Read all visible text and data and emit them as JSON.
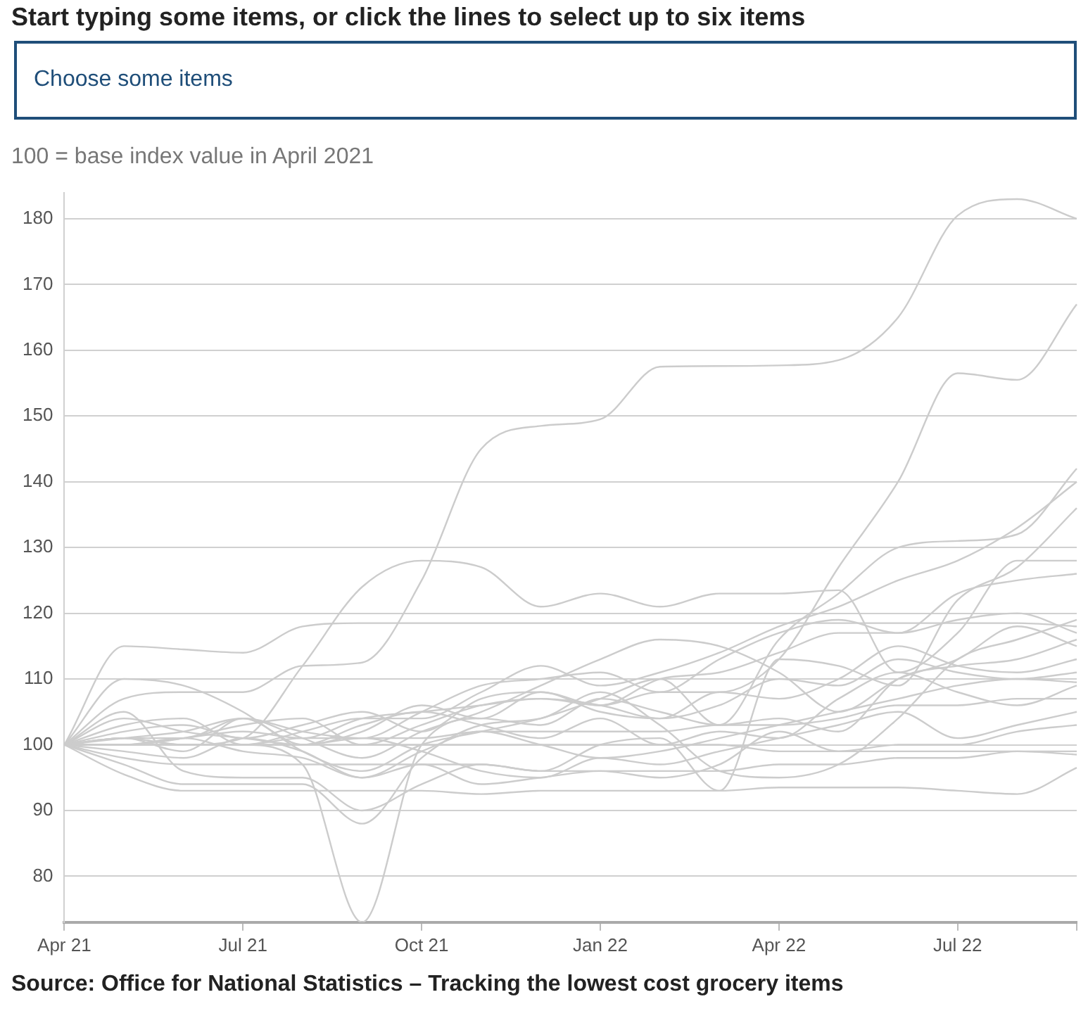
{
  "chart_data": {
    "type": "line",
    "title": "Start typing some items, or click the lines to select up to six items",
    "ylabel": "100 = base index value in April 2021",
    "annotations": [
      "Choose some items",
      "Source: Office for National Statistics – Tracking the lowest cost grocery items"
    ],
    "categories": [
      "Apr 21",
      null,
      null,
      "Jul 21",
      null,
      null,
      "Oct 21",
      null,
      null,
      "Jan 22",
      null,
      null,
      "Apr 22",
      null,
      null,
      "Jul 22",
      null,
      null
    ],
    "ylim": [
      73,
      184
    ],
    "yticks": [
      80,
      90,
      100,
      110,
      120,
      130,
      140,
      150,
      160,
      170,
      180
    ],
    "grid": "y",
    "legend": false,
    "marker": "none",
    "line_style": "solid",
    "series": [
      {
        "color": "#cccccc",
        "values": [
          100,
          107,
          108,
          108,
          112,
          112.5,
          125,
          145,
          148.5,
          149.5,
          157.5,
          157.6,
          157.7,
          158.5,
          165,
          180.5,
          183,
          180
        ]
      },
      {
        "color": "#cccccc",
        "values": [
          100,
          101,
          100,
          101,
          112,
          124,
          128,
          127,
          121,
          123,
          121,
          123,
          123,
          123.5,
          111,
          117,
          128,
          128
        ]
      },
      {
        "color": "#cccccc",
        "values": [
          100,
          115,
          114.5,
          114,
          118,
          118.5,
          118.5,
          118.5,
          118.5,
          118.5,
          118.5,
          118.5,
          118.5,
          118.5,
          118.5,
          118.5,
          118.5,
          118
        ]
      },
      {
        "color": "#cccccc",
        "values": [
          100,
          100,
          101,
          102,
          101,
          104,
          105,
          106,
          107,
          106,
          108,
          108,
          113,
          127,
          140,
          156.5,
          155.5,
          167
        ]
      },
      {
        "color": "#cccccc",
        "values": [
          100,
          100,
          100,
          100,
          97,
          73,
          100,
          104,
          103,
          107,
          105,
          103,
          104,
          102,
          110,
          112,
          113,
          116
        ]
      },
      {
        "color": "#cccccc",
        "values": [
          100,
          95.5,
          93,
          93,
          93,
          93,
          93,
          92.5,
          93,
          93,
          93,
          93,
          93.5,
          93.5,
          93.5,
          93,
          92.5,
          96.5
        ]
      },
      {
        "color": "#cccccc",
        "values": [
          100,
          97,
          94,
          94,
          94,
          88,
          98,
          103,
          104,
          108,
          103,
          96,
          95,
          97,
          104,
          113,
          116,
          119
        ]
      },
      {
        "color": "#cccccc",
        "values": [
          100,
          105,
          96,
          95,
          95,
          90,
          94,
          97,
          96,
          100,
          101,
          93,
          113,
          112,
          109,
          122,
          127,
          136
        ]
      },
      {
        "color": "#cccccc",
        "values": [
          100,
          110,
          109,
          105,
          99,
          96,
          100,
          102,
          104,
          107,
          110,
          103,
          116,
          123,
          130,
          131,
          132,
          142
        ]
      },
      {
        "color": "#cccccc",
        "values": [
          100,
          103,
          104,
          100,
          102,
          104,
          104,
          108,
          112,
          109,
          111,
          114,
          118,
          121,
          125,
          128,
          133,
          140
        ]
      },
      {
        "color": "#cccccc",
        "values": [
          100,
          101,
          99,
          104,
          101,
          98,
          102,
          105,
          109,
          113,
          116,
          115,
          111,
          105,
          110,
          113,
          118,
          115
        ]
      },
      {
        "color": "#cccccc",
        "values": [
          100,
          101,
          102,
          104,
          102,
          101,
          105,
          109,
          110,
          111,
          108,
          113,
          117,
          119,
          117,
          119,
          120,
          117
        ]
      },
      {
        "color": "#cccccc",
        "values": [
          100,
          100,
          101,
          103,
          104,
          100,
          103,
          106,
          107,
          106,
          104,
          108,
          107,
          110,
          115,
          112,
          111,
          113
        ]
      },
      {
        "color": "#cccccc",
        "values": [
          100,
          99,
          98,
          101,
          99,
          95,
          99,
          102,
          100,
          98,
          99,
          101,
          103,
          105,
          107,
          109,
          110,
          109.5
        ]
      },
      {
        "color": "#cccccc",
        "values": [
          100,
          100,
          100,
          100,
          101,
          101,
          101,
          102,
          102,
          102,
          102,
          103,
          103,
          104,
          106,
          106,
          107,
          107
        ]
      },
      {
        "color": "#cccccc",
        "values": [
          100,
          98,
          97,
          97,
          97,
          97,
          97,
          97,
          96,
          96,
          96,
          96,
          97,
          97,
          98,
          98,
          99,
          98.5
        ]
      },
      {
        "color": "#cccccc",
        "values": [
          100,
          104,
          102,
          101,
          100,
          103,
          105,
          103,
          101,
          104,
          100,
          102,
          101,
          107,
          111,
          108,
          106,
          109
        ]
      },
      {
        "color": "#cccccc",
        "values": [
          100,
          101,
          100,
          100,
          100,
          101,
          99,
          96,
          95,
          98,
          97,
          99,
          101,
          103,
          105,
          101,
          103,
          105
        ]
      },
      {
        "color": "#cccccc",
        "values": [
          100,
          100,
          101,
          99,
          98,
          95,
          97,
          94,
          95,
          96,
          95,
          97,
          102,
          99,
          100,
          100,
          102,
          103
        ]
      },
      {
        "color": "#cccccc",
        "values": [
          100,
          102,
          103,
          101,
          103,
          105,
          102,
          107,
          108,
          105,
          104,
          106,
          110,
          109,
          113,
          111,
          110,
          111
        ]
      },
      {
        "color": "#cccccc",
        "values": [
          100,
          100,
          100,
          100,
          100,
          100,
          100,
          100,
          100,
          100,
          100,
          100,
          99,
          99,
          99,
          99,
          99,
          99
        ]
      },
      {
        "color": "#cccccc",
        "values": [
          100,
          101,
          101,
          104,
          100,
          102,
          106,
          104,
          108,
          106,
          110,
          111,
          114,
          117,
          117,
          123,
          125,
          126
        ]
      }
    ]
  }
}
